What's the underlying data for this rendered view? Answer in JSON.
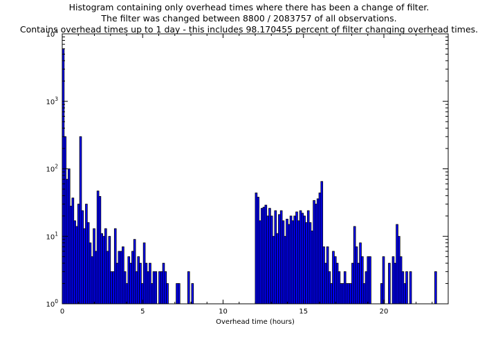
{
  "chart_data": {
    "type": "bar",
    "title_lines": [
      "Histogram containing only overhead times where there has been a change of filter.",
      "The filter was changed between 8800 / 2083757 of all observations.",
      "Contains overhead times up to 1 day - this includes 98.170455 percent of filter changing overhead times."
    ],
    "xlabel": "Overhead time (hours)",
    "ylabel": "",
    "xlim": [
      0,
      24
    ],
    "ylim": [
      1,
      10000
    ],
    "yscale": "log",
    "xticks": [
      0,
      5,
      10,
      15,
      20
    ],
    "xtick_labels": [
      "0",
      "5",
      "10",
      "15",
      "20"
    ],
    "yticks": [
      1,
      10,
      100,
      1000,
      10000
    ],
    "ytick_labels": [
      {
        "base": "10",
        "exp": "0"
      },
      {
        "base": "10",
        "exp": "1"
      },
      {
        "base": "10",
        "exp": "2"
      },
      {
        "base": "10",
        "exp": "3"
      },
      {
        "base": "10",
        "exp": "4"
      }
    ],
    "bar_width": 0.12,
    "bar_color": "#0000ff",
    "grid": false,
    "bars": [
      {
        "x": 0.0,
        "y": 6000
      },
      {
        "x": 0.12,
        "y": 300
      },
      {
        "x": 0.24,
        "y": 70
      },
      {
        "x": 0.36,
        "y": 100
      },
      {
        "x": 0.48,
        "y": 28
      },
      {
        "x": 0.6,
        "y": 37
      },
      {
        "x": 0.72,
        "y": 17
      },
      {
        "x": 0.84,
        "y": 14
      },
      {
        "x": 0.96,
        "y": 30
      },
      {
        "x": 1.08,
        "y": 300
      },
      {
        "x": 1.2,
        "y": 24
      },
      {
        "x": 1.32,
        "y": 13
      },
      {
        "x": 1.44,
        "y": 30
      },
      {
        "x": 1.56,
        "y": 16
      },
      {
        "x": 1.68,
        "y": 8
      },
      {
        "x": 1.8,
        "y": 5
      },
      {
        "x": 1.92,
        "y": 13
      },
      {
        "x": 2.04,
        "y": 6
      },
      {
        "x": 2.16,
        "y": 47
      },
      {
        "x": 2.28,
        "y": 39
      },
      {
        "x": 2.4,
        "y": 11
      },
      {
        "x": 2.52,
        "y": 10
      },
      {
        "x": 2.64,
        "y": 13
      },
      {
        "x": 2.76,
        "y": 6
      },
      {
        "x": 2.88,
        "y": 10
      },
      {
        "x": 3.0,
        "y": 3
      },
      {
        "x": 3.12,
        "y": 3
      },
      {
        "x": 3.24,
        "y": 13
      },
      {
        "x": 3.36,
        "y": 4
      },
      {
        "x": 3.48,
        "y": 6
      },
      {
        "x": 3.6,
        "y": 6
      },
      {
        "x": 3.72,
        "y": 7
      },
      {
        "x": 3.84,
        "y": 3
      },
      {
        "x": 3.96,
        "y": 2
      },
      {
        "x": 4.08,
        "y": 5
      },
      {
        "x": 4.2,
        "y": 4
      },
      {
        "x": 4.32,
        "y": 6
      },
      {
        "x": 4.44,
        "y": 9
      },
      {
        "x": 4.56,
        "y": 3
      },
      {
        "x": 4.68,
        "y": 5
      },
      {
        "x": 4.8,
        "y": 4
      },
      {
        "x": 4.92,
        "y": 2
      },
      {
        "x": 5.04,
        "y": 8
      },
      {
        "x": 5.16,
        "y": 4
      },
      {
        "x": 5.28,
        "y": 3
      },
      {
        "x": 5.4,
        "y": 4
      },
      {
        "x": 5.52,
        "y": 2
      },
      {
        "x": 5.64,
        "y": 3
      },
      {
        "x": 5.76,
        "y": 3
      },
      {
        "x": 6.0,
        "y": 3
      },
      {
        "x": 6.12,
        "y": 3
      },
      {
        "x": 6.24,
        "y": 4
      },
      {
        "x": 6.36,
        "y": 3
      },
      {
        "x": 6.48,
        "y": 2
      },
      {
        "x": 7.08,
        "y": 2
      },
      {
        "x": 7.2,
        "y": 2
      },
      {
        "x": 7.8,
        "y": 3
      },
      {
        "x": 8.04,
        "y": 2
      },
      {
        "x": 12.0,
        "y": 44
      },
      {
        "x": 12.12,
        "y": 38
      },
      {
        "x": 12.24,
        "y": 17
      },
      {
        "x": 12.36,
        "y": 26
      },
      {
        "x": 12.48,
        "y": 27
      },
      {
        "x": 12.6,
        "y": 29
      },
      {
        "x": 12.72,
        "y": 20
      },
      {
        "x": 12.84,
        "y": 26
      },
      {
        "x": 12.96,
        "y": 20
      },
      {
        "x": 13.08,
        "y": 10
      },
      {
        "x": 13.2,
        "y": 24
      },
      {
        "x": 13.32,
        "y": 11
      },
      {
        "x": 13.44,
        "y": 21
      },
      {
        "x": 13.56,
        "y": 24
      },
      {
        "x": 13.68,
        "y": 17
      },
      {
        "x": 13.8,
        "y": 10
      },
      {
        "x": 13.92,
        "y": 18
      },
      {
        "x": 14.04,
        "y": 15
      },
      {
        "x": 14.16,
        "y": 20
      },
      {
        "x": 14.28,
        "y": 17
      },
      {
        "x": 14.4,
        "y": 20
      },
      {
        "x": 14.52,
        "y": 23
      },
      {
        "x": 14.64,
        "y": 17
      },
      {
        "x": 14.76,
        "y": 24
      },
      {
        "x": 14.88,
        "y": 22
      },
      {
        "x": 15.0,
        "y": 20
      },
      {
        "x": 15.12,
        "y": 16
      },
      {
        "x": 15.24,
        "y": 24
      },
      {
        "x": 15.36,
        "y": 16
      },
      {
        "x": 15.48,
        "y": 12
      },
      {
        "x": 15.6,
        "y": 34
      },
      {
        "x": 15.72,
        "y": 30
      },
      {
        "x": 15.84,
        "y": 36
      },
      {
        "x": 15.96,
        "y": 44
      },
      {
        "x": 16.08,
        "y": 65
      },
      {
        "x": 16.2,
        "y": 7
      },
      {
        "x": 16.32,
        "y": 4
      },
      {
        "x": 16.44,
        "y": 7
      },
      {
        "x": 16.56,
        "y": 3
      },
      {
        "x": 16.68,
        "y": 2
      },
      {
        "x": 16.8,
        "y": 6
      },
      {
        "x": 16.92,
        "y": 5
      },
      {
        "x": 17.04,
        "y": 4
      },
      {
        "x": 17.16,
        "y": 3
      },
      {
        "x": 17.28,
        "y": 2
      },
      {
        "x": 17.4,
        "y": 2
      },
      {
        "x": 17.52,
        "y": 3
      },
      {
        "x": 17.64,
        "y": 2
      },
      {
        "x": 17.76,
        "y": 2
      },
      {
        "x": 17.88,
        "y": 2
      },
      {
        "x": 18.0,
        "y": 4
      },
      {
        "x": 18.12,
        "y": 14
      },
      {
        "x": 18.24,
        "y": 7
      },
      {
        "x": 18.36,
        "y": 4
      },
      {
        "x": 18.48,
        "y": 8
      },
      {
        "x": 18.6,
        "y": 5
      },
      {
        "x": 18.72,
        "y": 2
      },
      {
        "x": 18.84,
        "y": 3
      },
      {
        "x": 18.96,
        "y": 5
      },
      {
        "x": 19.08,
        "y": 5
      },
      {
        "x": 19.8,
        "y": 2
      },
      {
        "x": 19.92,
        "y": 5
      },
      {
        "x": 20.28,
        "y": 4
      },
      {
        "x": 20.52,
        "y": 5
      },
      {
        "x": 20.64,
        "y": 4
      },
      {
        "x": 20.76,
        "y": 15
      },
      {
        "x": 20.88,
        "y": 10
      },
      {
        "x": 21.0,
        "y": 5
      },
      {
        "x": 21.12,
        "y": 3
      },
      {
        "x": 21.24,
        "y": 2
      },
      {
        "x": 21.36,
        "y": 3
      },
      {
        "x": 21.6,
        "y": 3
      },
      {
        "x": 23.16,
        "y": 3
      }
    ]
  }
}
